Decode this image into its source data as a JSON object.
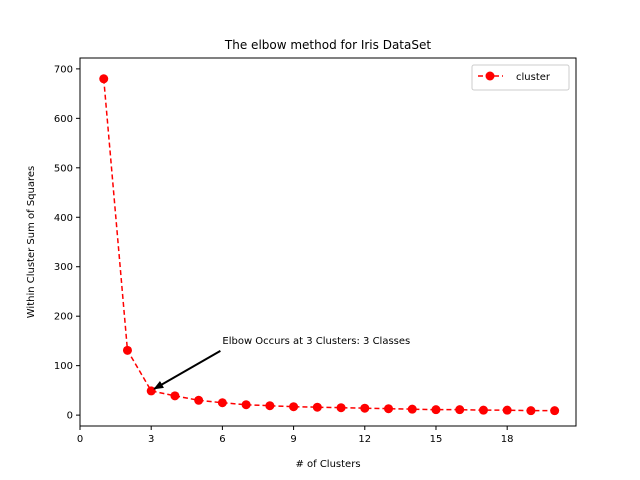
{
  "chart_data": {
    "type": "line",
    "title": "The elbow method for Iris DataSet",
    "xlabel": "# of Clusters",
    "ylabel": "Within Cluster Sum of Squares",
    "xlim": [
      0,
      20.9
    ],
    "ylim": [
      -22,
      722
    ],
    "xticks": [
      0,
      3,
      6,
      9,
      12,
      15,
      18
    ],
    "yticks": [
      0,
      100,
      200,
      300,
      400,
      500,
      600,
      700
    ],
    "grid": false,
    "legend_position": "top-right",
    "series": [
      {
        "name": "cluster",
        "color": "#ff0000",
        "line_style": "dashed",
        "marker": "circle",
        "x": [
          1,
          2,
          3,
          4,
          5,
          6,
          7,
          8,
          9,
          10,
          11,
          12,
          13,
          14,
          15,
          16,
          17,
          18,
          19,
          20
        ],
        "y": [
          680,
          131,
          49,
          39,
          30,
          25,
          21,
          19,
          17,
          16,
          15,
          14,
          13,
          12,
          11,
          11,
          10,
          10,
          9,
          9
        ]
      }
    ],
    "annotation": {
      "text": "Elbow Occurs at 3 Clusters: 3 Classes",
      "point": [
        3,
        49
      ],
      "text_position": [
        6,
        150
      ]
    }
  }
}
